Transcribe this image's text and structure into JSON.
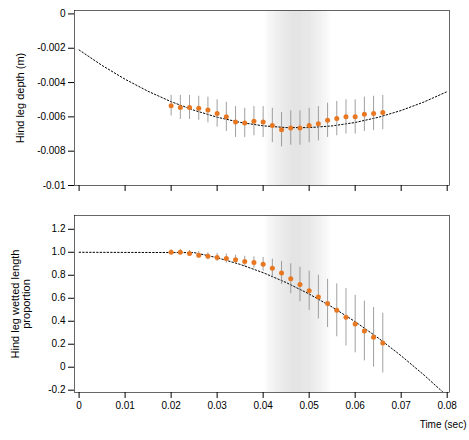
{
  "chart_data": [
    {
      "type": "scatter",
      "ylabel": "Hind leg depth (m)",
      "xlim": [
        -0.001,
        0.0805
      ],
      "xticks": [
        0,
        0.01,
        0.02,
        0.03,
        0.04,
        0.05,
        0.06,
        0.07,
        0.08
      ],
      "ylim": [
        -0.01,
        0.0002
      ],
      "yticks": [
        0,
        -0.002,
        -0.004,
        -0.006,
        -0.008,
        -0.01
      ],
      "tick_labels": "y",
      "shade": {
        "from": 0.04,
        "to": 0.055,
        "color": "#c8c8c8"
      },
      "series": [
        {
          "type": "line",
          "line_style": "dotted",
          "color": "black",
          "x": [
            0,
            0.005,
            0.01,
            0.015,
            0.02,
            0.025,
            0.03,
            0.035,
            0.04,
            0.045,
            0.05,
            0.055,
            0.06,
            0.065,
            0.07,
            0.075,
            0.08
          ],
          "values": [
            -0.0021,
            -0.003003855,
            -0.00380742,
            -0.004510695,
            -0.00511368,
            -0.005616375,
            -0.00601878,
            -0.006320895,
            -0.00652272,
            -0.006624255,
            -0.0066255,
            -0.006526455,
            -0.00632712,
            -0.006027495,
            -0.00562758,
            -0.00512737,
            -0.00452688
          ]
        },
        {
          "type": "scatter",
          "marker": "o",
          "color": "#E87722",
          "x": [
            0.02,
            0.022,
            0.024,
            0.026,
            0.028,
            0.03,
            0.032,
            0.034,
            0.036,
            0.038,
            0.04,
            0.042,
            0.044,
            0.046,
            0.048,
            0.05,
            0.052,
            0.054,
            0.056,
            0.058,
            0.06,
            0.062,
            0.064,
            0.066
          ],
          "values": [
            -0.00535,
            -0.00545,
            -0.00545,
            -0.0055,
            -0.0056,
            -0.0058,
            -0.006,
            -0.0063,
            -0.00635,
            -0.00625,
            -0.0063,
            -0.0065,
            -0.00675,
            -0.00665,
            -0.00665,
            -0.0065,
            -0.0064,
            -0.0062,
            -0.0061,
            -0.006,
            -0.006,
            -0.00585,
            -0.0058,
            -0.00575
          ],
          "error": [
            0.0006,
            0.0007,
            0.0007,
            0.0007,
            0.00075,
            0.0008,
            0.00085,
            0.0009,
            0.00085,
            0.00085,
            0.0009,
            0.001,
            0.001,
            0.001,
            0.001,
            0.001,
            0.001,
            0.001,
            0.001,
            0.001,
            0.001,
            0.001,
            0.001,
            0.001
          ],
          "error_color": "#888888"
        }
      ]
    },
    {
      "type": "scatter",
      "ylabel": "Hind leg wetted length\nproportion",
      "xlabel": "Time (sec)",
      "xlim": [
        -0.001,
        0.0805
      ],
      "xticks": [
        0,
        0.01,
        0.02,
        0.03,
        0.04,
        0.05,
        0.06,
        0.07,
        0.08
      ],
      "ylim": [
        -0.22,
        1.32
      ],
      "yticks": [
        -0.2,
        0,
        0.2,
        0.4,
        0.6,
        0.8,
        {
          "value": 1.0,
          "label": "1.0"
        },
        1.2
      ],
      "shade": {
        "from": 0.04,
        "to": 0.055,
        "color": "#c8c8c8"
      },
      "series": [
        {
          "type": "line",
          "line_style": "dotted",
          "color": "black",
          "x": [
            0,
            0.025,
            0.03,
            0.035,
            0.04,
            0.045,
            0.05,
            0.055,
            0.06,
            0.065,
            0.07,
            0.075,
            0.079
          ],
          "values": [
            1.0,
            0.99717625,
            0.952832,
            0.89464125,
            0.822604,
            0.73672025,
            0.63699,
            0.52341325,
            0.39599,
            0.25472025,
            0.099604,
            -0.06935875,
            -0.21449843
          ]
        },
        {
          "type": "scatter",
          "marker": "o",
          "color": "#E87722",
          "x": [
            0.02,
            0.022,
            0.024,
            0.026,
            0.028,
            0.03,
            0.032,
            0.034,
            0.036,
            0.038,
            0.04,
            0.042,
            0.044,
            0.046,
            0.048,
            0.05,
            0.052,
            0.054,
            0.056,
            0.058,
            0.06,
            0.062,
            0.064,
            0.066
          ],
          "values": [
            1.0,
            1.0,
            0.99,
            0.975,
            0.965,
            0.955,
            0.945,
            0.935,
            0.92,
            0.91,
            0.895,
            0.86,
            0.82,
            0.77,
            0.72,
            0.665,
            0.61,
            0.555,
            0.495,
            0.435,
            0.375,
            0.315,
            0.26,
            0.21
          ],
          "error": [
            0.02,
            0.025,
            0.025,
            0.03,
            0.03,
            0.035,
            0.04,
            0.04,
            0.045,
            0.05,
            0.06,
            0.08,
            0.1,
            0.13,
            0.15,
            0.17,
            0.19,
            0.21,
            0.23,
            0.25,
            0.25,
            0.26,
            0.26,
            0.26
          ],
          "error_color": "#888888"
        }
      ]
    }
  ]
}
